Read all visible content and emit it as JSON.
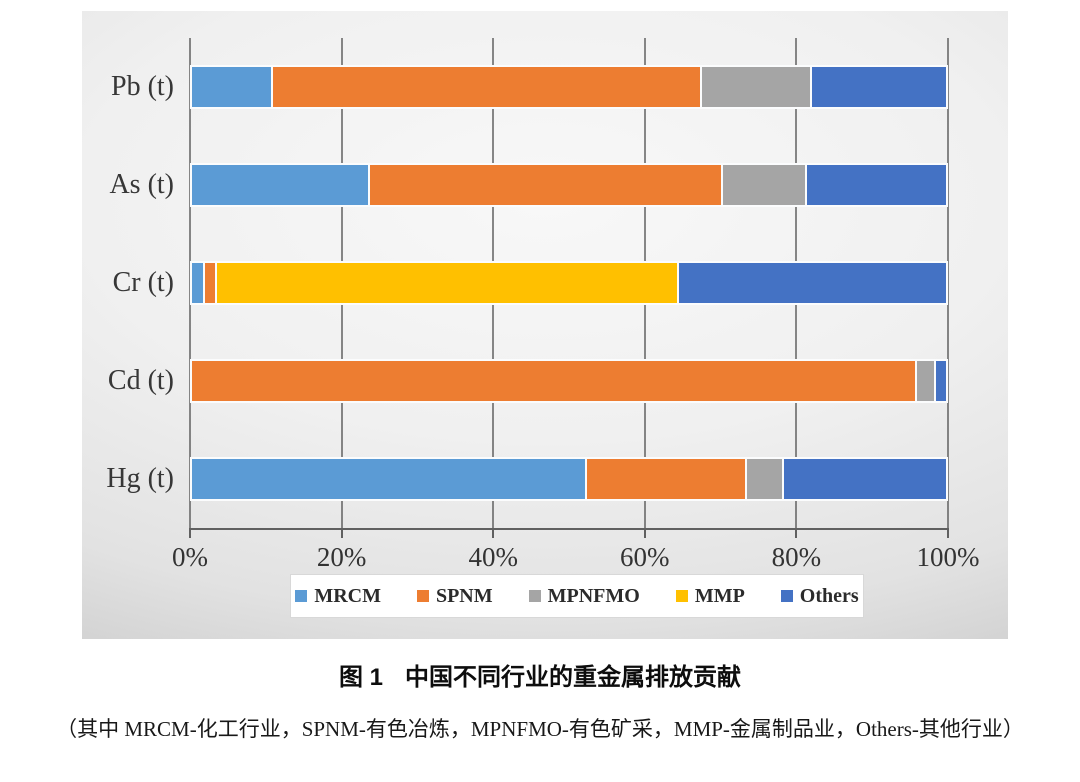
{
  "figure": {
    "caption_label": "图 1",
    "caption_title": "中国不同行业的重金属排放贡献",
    "subcaption": "（其中 MRCM-化工行业，SPNM-有色冶炼，MPNFMO-有色矿采，MMP-金属制品业，Others-其他行业）"
  },
  "colors": {
    "gridline": "#606060",
    "legend_background": "#ffffff",
    "panel_gradient_center": "#f8f8f8",
    "panel_gradient_edge": "#c2c2c2",
    "bar_border": "#fbfcfd",
    "text": "#333333"
  },
  "chart_data": {
    "type": "bar",
    "orientation": "horizontal",
    "stacked": true,
    "unit": "percent",
    "grid": true,
    "legend_position": "bottom",
    "xlim": [
      0,
      100
    ],
    "x_ticks": [
      "0%",
      "20%",
      "40%",
      "60%",
      "80%",
      "100%"
    ],
    "categories": [
      "Pb (t)",
      "As (t)",
      "Cr (t)",
      "Cd (t)",
      "Hg (t)"
    ],
    "series": [
      {
        "name": "MRCM",
        "color": "#5B9BD5",
        "values": [
          10.6,
          23.5,
          1.5,
          0,
          52.6
        ]
      },
      {
        "name": "SPNM",
        "color": "#ED7D31",
        "values": [
          57.1,
          46.9,
          1.3,
          96.4,
          21.0
        ]
      },
      {
        "name": "MPNFMO",
        "color": "#A5A5A5",
        "values": [
          14.4,
          11.0,
          0,
          2.2,
          4.7
        ]
      },
      {
        "name": "MMP",
        "color": "#FFC000",
        "values": [
          0,
          0,
          61.5,
          0,
          0
        ]
      },
      {
        "name": "Others",
        "color": "#4472C4",
        "values": [
          17.9,
          18.6,
          35.7,
          1.4,
          21.7
        ]
      }
    ]
  }
}
